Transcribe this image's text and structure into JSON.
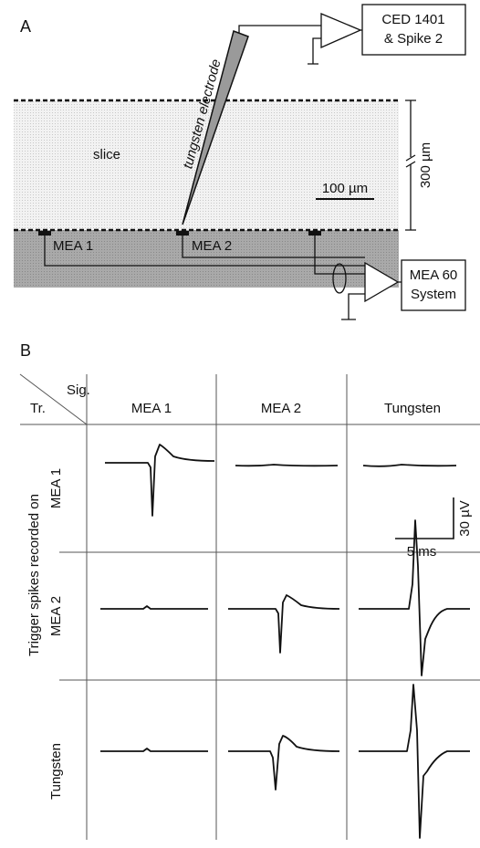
{
  "panel_a": {
    "label": "A",
    "recorder_box": [
      "CED 1401",
      "& Spike 2"
    ],
    "electrode_label": "tungsten electrode",
    "slice_label": "slice",
    "thickness_label": "300 µm",
    "scale_label": "100 µm",
    "mea_electrodes": [
      "MEA 1",
      "MEA 2"
    ],
    "mea_box": [
      "MEA 60",
      "System"
    ]
  },
  "panel_b": {
    "label": "B",
    "corner": {
      "columns_label": "Sig.",
      "rows_label": "Tr."
    },
    "columns": [
      "MEA 1",
      "MEA 2",
      "Tungsten"
    ],
    "rows": [
      "MEA 1",
      "MEA 2",
      "Tungsten"
    ],
    "rows_title": "Trigger spikes recorded on",
    "scale_bar": {
      "vertical": "30 µV",
      "horizontal": "5 ms"
    }
  }
}
